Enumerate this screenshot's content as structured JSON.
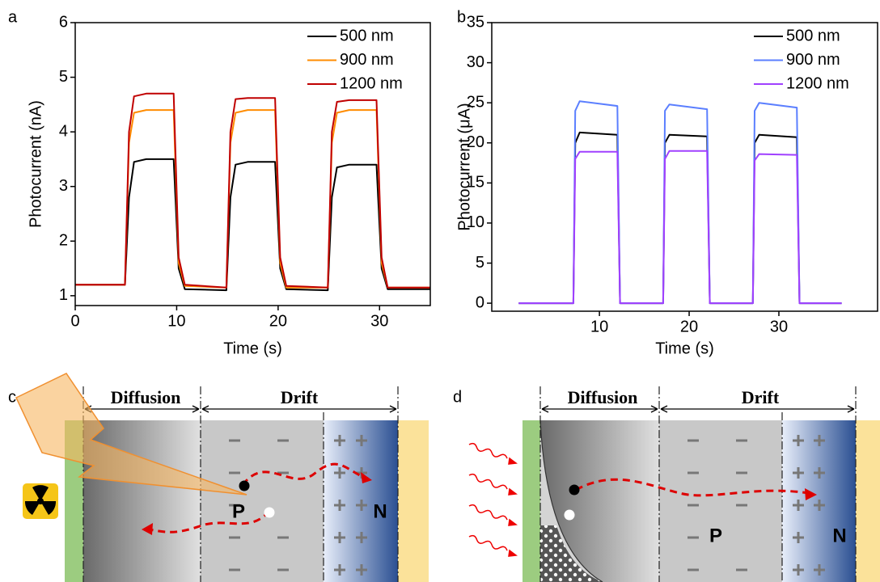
{
  "chart_data": [
    {
      "type": "line",
      "label": "a",
      "x_label": "Time (s)",
      "y_label": "Photocurrent (nA)",
      "x": [
        0,
        4.9,
        5.3,
        5.8,
        7,
        9.7,
        10.2,
        10.8,
        14.9,
        15.3,
        15.8,
        17,
        19.7,
        20.2,
        20.8,
        24.9,
        25.3,
        25.8,
        27,
        29.7,
        30.2,
        30.8,
        35
      ],
      "xlim": [
        0,
        35
      ],
      "xticks": [
        0,
        10,
        20,
        30
      ],
      "ylim": [
        0.82,
        6
      ],
      "yticks": [
        1,
        2,
        3,
        4,
        5,
        6
      ],
      "legend": "upper right",
      "series": [
        {
          "name": "500 nm",
          "color": "#000000",
          "values": [
            1.2,
            1.2,
            2.8,
            3.45,
            3.5,
            3.5,
            1.5,
            1.12,
            1.1,
            2.8,
            3.4,
            3.45,
            3.45,
            1.5,
            1.12,
            1.1,
            2.8,
            3.35,
            3.4,
            3.4,
            1.5,
            1.12,
            1.12
          ]
        },
        {
          "name": "900 nm",
          "color": "#ff8c00",
          "values": [
            1.2,
            1.2,
            3.8,
            4.35,
            4.4,
            4.4,
            1.6,
            1.18,
            1.15,
            3.8,
            4.35,
            4.4,
            4.4,
            1.6,
            1.15,
            1.15,
            3.8,
            4.35,
            4.4,
            4.4,
            1.6,
            1.15,
            1.15
          ]
        },
        {
          "name": "1200 nm",
          "color": "#c00000",
          "values": [
            1.2,
            1.2,
            4.0,
            4.65,
            4.7,
            4.7,
            1.7,
            1.2,
            1.15,
            4.0,
            4.6,
            4.62,
            4.62,
            1.7,
            1.18,
            1.15,
            4.0,
            4.55,
            4.58,
            4.58,
            1.7,
            1.15,
            1.15
          ]
        }
      ]
    },
    {
      "type": "line",
      "label": "b",
      "x_label": "Time (s)",
      "y_label": "Photocurrent (μA)",
      "x": [
        1,
        7.1,
        7.3,
        7.8,
        12.0,
        12.3,
        17.1,
        17.3,
        17.8,
        22.0,
        22.3,
        27.1,
        27.3,
        27.8,
        32.0,
        32.3,
        37
      ],
      "xlim": [
        -2,
        41
      ],
      "xticks": [
        10,
        20,
        30
      ],
      "ylim": [
        -1,
        35
      ],
      "yticks": [
        0,
        5,
        10,
        15,
        20,
        25,
        30,
        35
      ],
      "legend": "upper right",
      "series": [
        {
          "name": "500 nm",
          "color": "#000000",
          "values": [
            0,
            0,
            20,
            21.3,
            21.0,
            0,
            0,
            20,
            21.0,
            20.8,
            0,
            0,
            20,
            21.0,
            20.7,
            0,
            0
          ]
        },
        {
          "name": "900 nm",
          "color": "#5b7fff",
          "values": [
            0,
            0,
            24,
            25.2,
            24.6,
            0,
            0,
            24,
            24.8,
            24.2,
            0,
            0,
            24,
            25.0,
            24.4,
            0,
            0
          ]
        },
        {
          "name": "1200 nm",
          "color": "#a040ff",
          "values": [
            0,
            0,
            18,
            18.9,
            18.9,
            0,
            0,
            18,
            19.0,
            19.0,
            0,
            0,
            17.8,
            18.6,
            18.5,
            0,
            0
          ]
        }
      ]
    }
  ],
  "diagrams": [
    {
      "label": "c",
      "regions": [
        "Diffusion",
        "Drift"
      ],
      "p_type": "P",
      "n_type": "N"
    },
    {
      "label": "d",
      "regions": [
        "Diffusion",
        "Drift"
      ],
      "p_type": "P",
      "n_type": "N"
    }
  ]
}
